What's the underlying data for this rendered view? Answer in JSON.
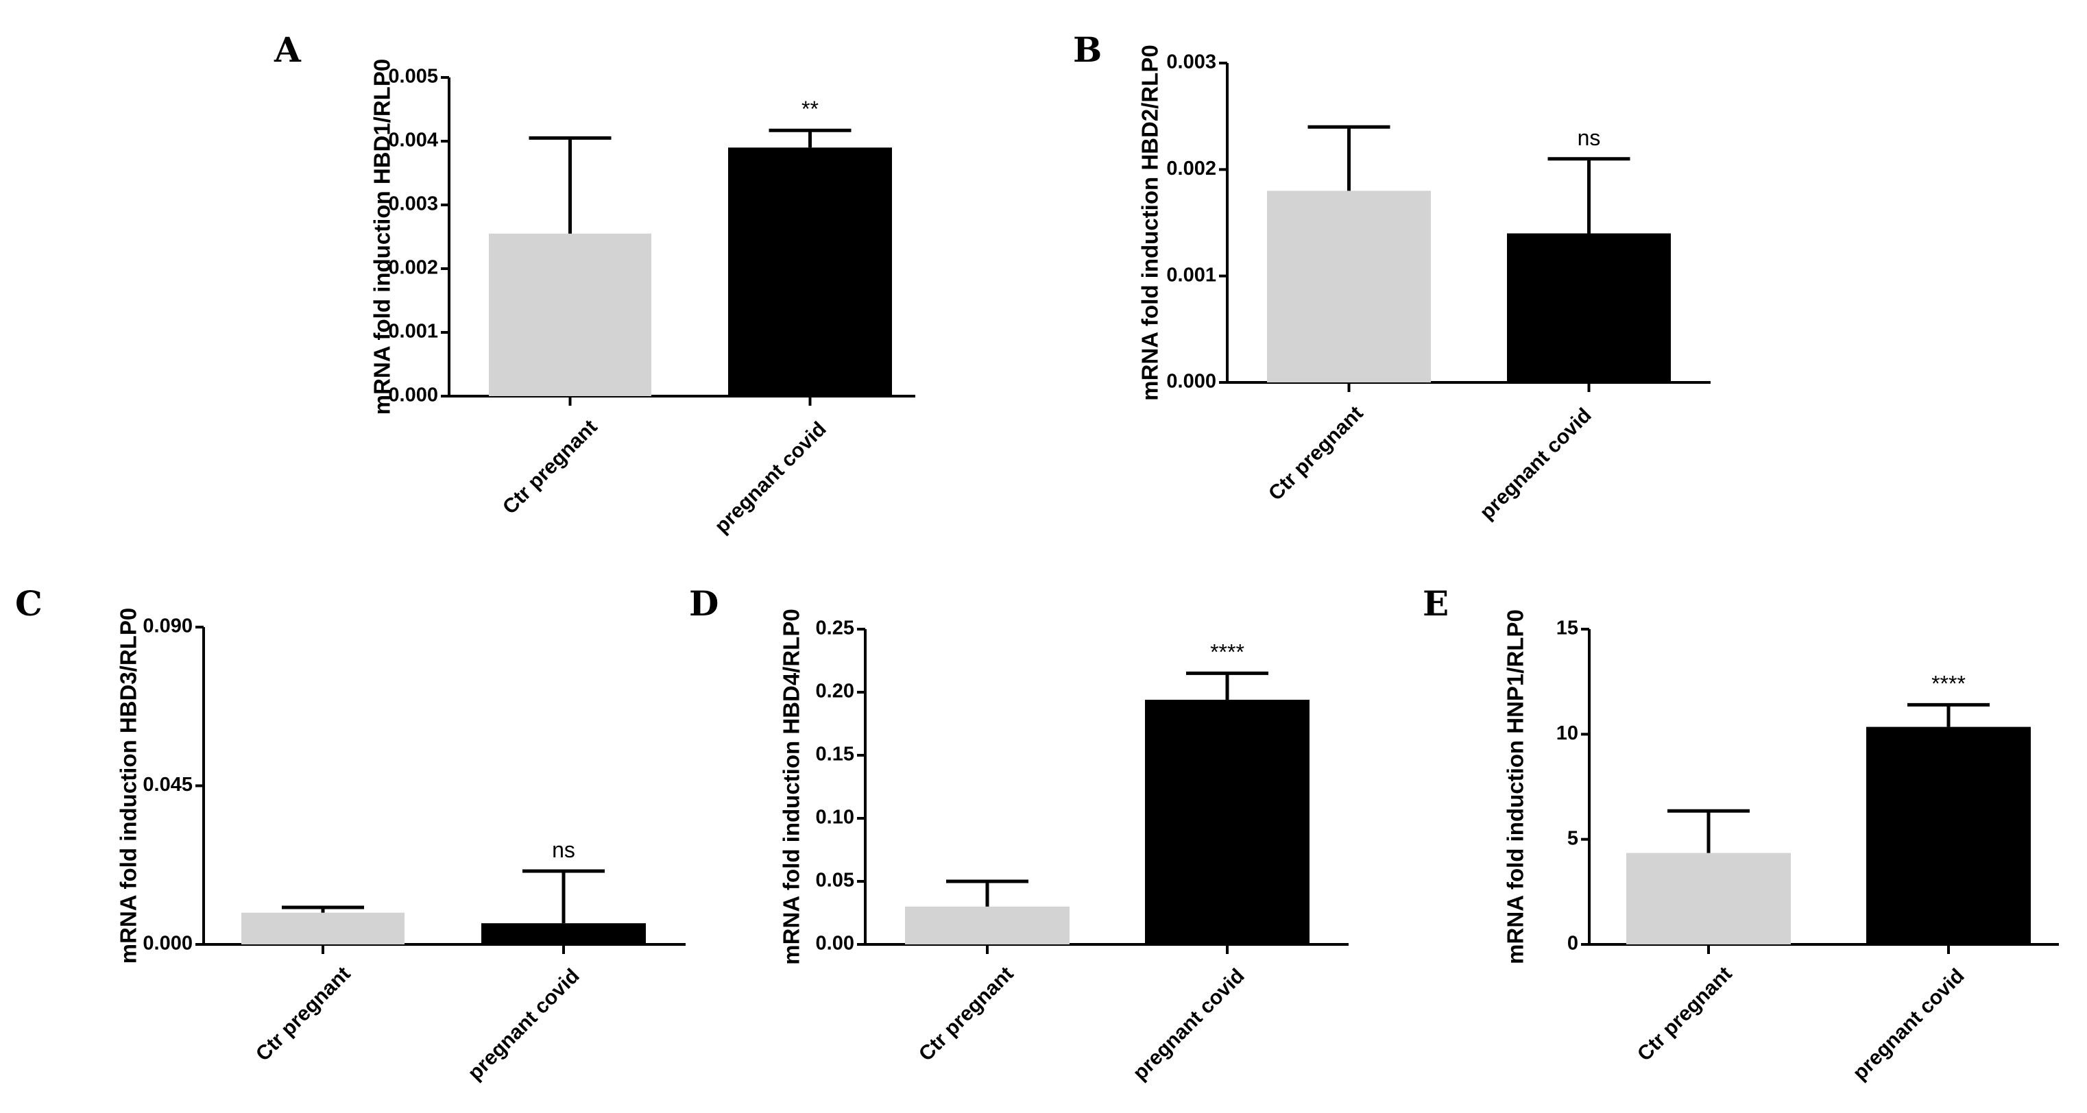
{
  "chart_data": [
    {
      "panel": "A",
      "type": "bar",
      "categories": [
        "Ctr pregnant",
        "pregnant covid"
      ],
      "values": [
        0.00255,
        0.0039
      ],
      "errors": [
        0.0015,
        0.00027
      ],
      "colors": [
        "#d3d3d3",
        "#000000"
      ],
      "ylabel": "mRNA fold induction HBD1/RLP0",
      "ylim": [
        0,
        0.005
      ],
      "ticks": [
        0,
        0.001,
        0.002,
        0.003,
        0.004,
        0.005
      ],
      "tick_labels": [
        "0.000",
        "0.001",
        "0.002",
        "0.003",
        "0.004",
        "0.005"
      ],
      "annotation": "**"
    },
    {
      "panel": "B",
      "type": "bar",
      "categories": [
        "Ctr pregnant",
        "pregnant covid"
      ],
      "values": [
        0.0018,
        0.0014
      ],
      "errors": [
        0.0006,
        0.0007
      ],
      "colors": [
        "#d3d3d3",
        "#000000"
      ],
      "ylabel": "mRNA fold induction HBD2/RLP0",
      "ylim": [
        0,
        0.003
      ],
      "ticks": [
        0,
        0.001,
        0.002,
        0.003
      ],
      "tick_labels": [
        "0.000",
        "0.001",
        "0.002",
        "0.003"
      ],
      "annotation": "ns"
    },
    {
      "panel": "C",
      "type": "bar",
      "categories": [
        "Ctr pregnant",
        "pregnant covid"
      ],
      "values": [
        0.009,
        0.006
      ],
      "errors": [
        0.0015,
        0.0148
      ],
      "colors": [
        "#d3d3d3",
        "#000000"
      ],
      "ylabel": "mRNA fold induction HBD3/RLP0",
      "ylim": [
        0,
        0.09
      ],
      "ticks": [
        0,
        0.045,
        0.09
      ],
      "tick_labels": [
        "0.000",
        "0.045",
        "0.090"
      ],
      "annotation": "ns"
    },
    {
      "panel": "D",
      "type": "bar",
      "categories": [
        "Ctr pregnant",
        "pregnant covid"
      ],
      "values": [
        0.03,
        0.194
      ],
      "errors": [
        0.02,
        0.021
      ],
      "colors": [
        "#d3d3d3",
        "#000000"
      ],
      "ylabel": "mRNA fold induction HBD4/RLP0",
      "ylim": [
        0,
        0.25
      ],
      "ticks": [
        0,
        0.05,
        0.1,
        0.15,
        0.2,
        0.25
      ],
      "tick_labels": [
        "0.00",
        "0.05",
        "0.10",
        "0.15",
        "0.20",
        "0.25"
      ],
      "annotation": "****"
    },
    {
      "panel": "E",
      "type": "bar",
      "categories": [
        "Ctr pregnant",
        "pregnant covid"
      ],
      "values": [
        4.35,
        10.35
      ],
      "errors": [
        2.0,
        1.05
      ],
      "colors": [
        "#d3d3d3",
        "#000000"
      ],
      "ylabel": "mRNA fold induction HNP1/RLP0",
      "ylim": [
        0,
        15
      ],
      "ticks": [
        0,
        5,
        10,
        15
      ],
      "tick_labels": [
        "0",
        "5",
        "10",
        "15"
      ],
      "annotation": "****"
    }
  ]
}
